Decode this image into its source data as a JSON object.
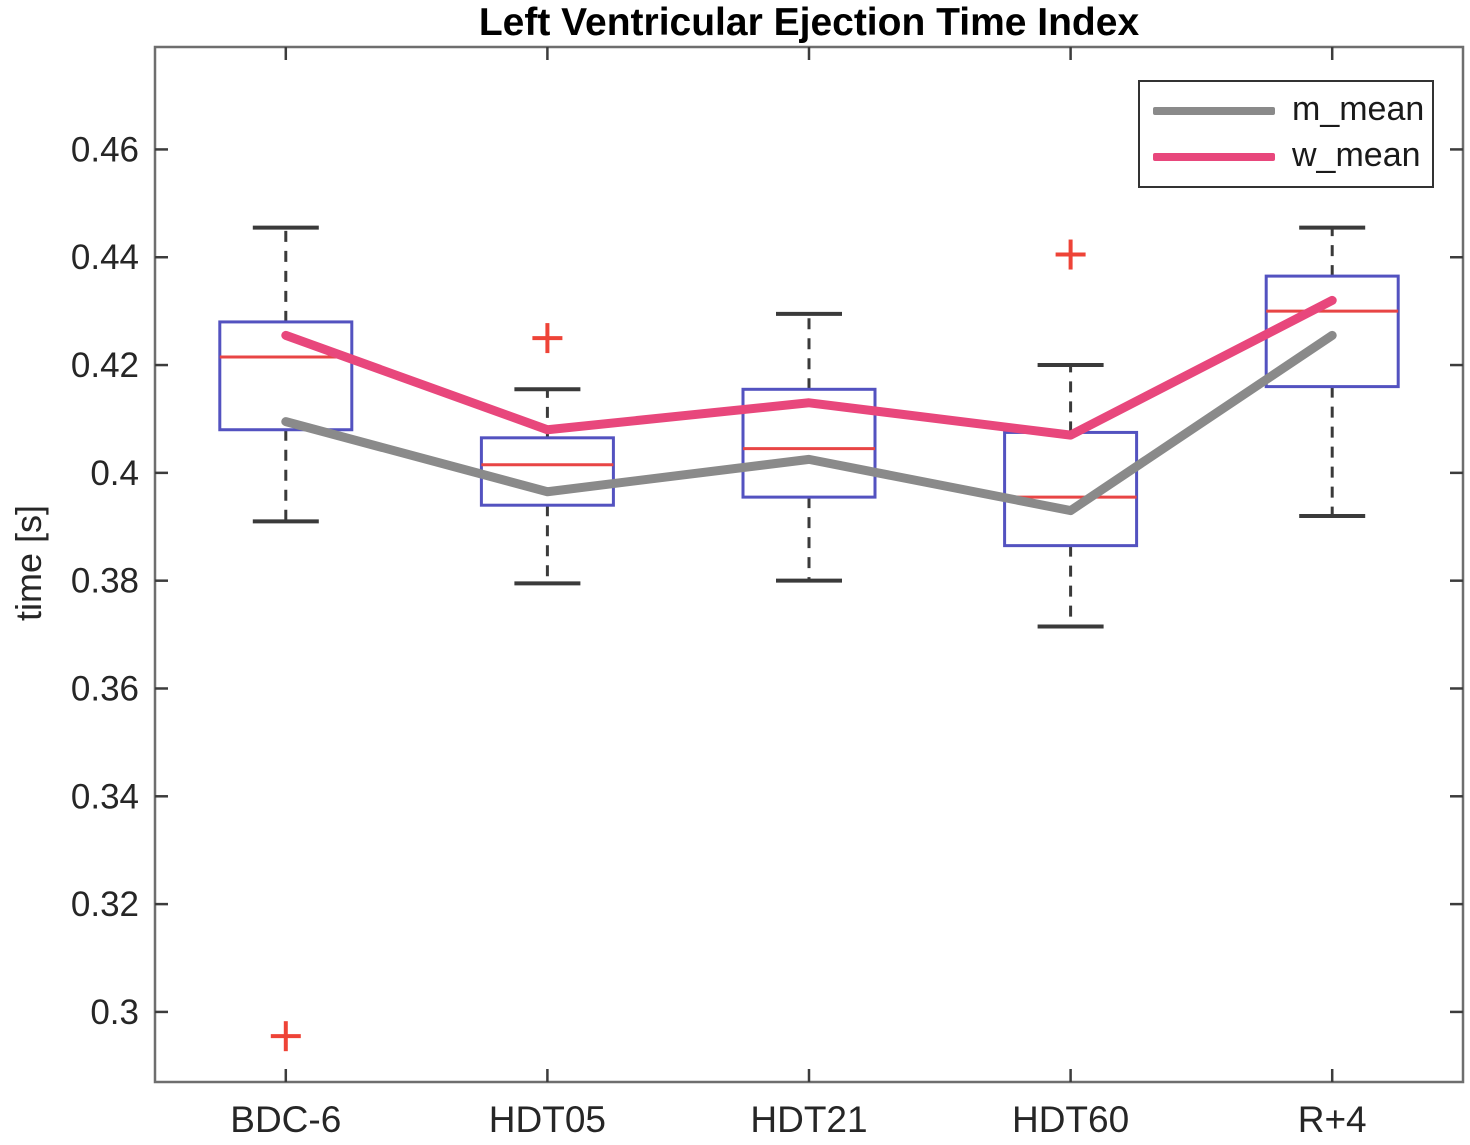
{
  "title": "Left Ventricular Ejection Time Index",
  "ylabel": "time [s]",
  "chart_data": {
    "type": "boxplot",
    "title": "Left Ventricular Ejection Time Index",
    "xlabel": "",
    "ylabel": "time [s]",
    "categories": [
      "BDC-6",
      "HDT05",
      "HDT21",
      "HDT60",
      "R+4"
    ],
    "ylim": [
      0.287,
      0.479
    ],
    "yticks": [
      0.3,
      0.32,
      0.34,
      0.36,
      0.38,
      0.4,
      0.42,
      0.44,
      0.46
    ],
    "ytick_labels": [
      "0.3",
      "0.32",
      "0.34",
      "0.36",
      "0.38",
      "0.4",
      "0.42",
      "0.44",
      "0.46"
    ],
    "grid": false,
    "legend_position": "top-right",
    "boxes": [
      {
        "category": "BDC-6",
        "whisker_low": 0.391,
        "q1": 0.408,
        "median": 0.4215,
        "q3": 0.428,
        "whisker_high": 0.4455,
        "outliers": [
          0.2955
        ]
      },
      {
        "category": "HDT05",
        "whisker_low": 0.3795,
        "q1": 0.394,
        "median": 0.4015,
        "q3": 0.4065,
        "whisker_high": 0.4155,
        "outliers": [
          0.425
        ]
      },
      {
        "category": "HDT21",
        "whisker_low": 0.38,
        "q1": 0.3955,
        "median": 0.4045,
        "q3": 0.4155,
        "whisker_high": 0.4295,
        "outliers": []
      },
      {
        "category": "HDT60",
        "whisker_low": 0.3715,
        "q1": 0.3865,
        "median": 0.3955,
        "q3": 0.4075,
        "whisker_high": 0.42,
        "outliers": [
          0.4405
        ]
      },
      {
        "category": "R+4",
        "whisker_low": 0.392,
        "q1": 0.416,
        "median": 0.43,
        "q3": 0.4365,
        "whisker_high": 0.4455,
        "outliers": []
      }
    ],
    "series": [
      {
        "name": "m_mean",
        "color": "#8a8a8a",
        "values": [
          0.4095,
          0.3965,
          0.4025,
          0.393,
          0.4255
        ]
      },
      {
        "name": "w_mean",
        "color": "#e8477c",
        "values": [
          0.4255,
          0.408,
          0.413,
          0.407,
          0.432
        ]
      }
    ],
    "colors": {
      "box": "#5352c0",
      "median": "#e84545",
      "whisker": "#3a3a3a",
      "outlier": "#ee4337",
      "axis": "#6e6e6e",
      "tick": "#3c3c3c",
      "tick_text": "#262626",
      "title": "#000000"
    }
  }
}
